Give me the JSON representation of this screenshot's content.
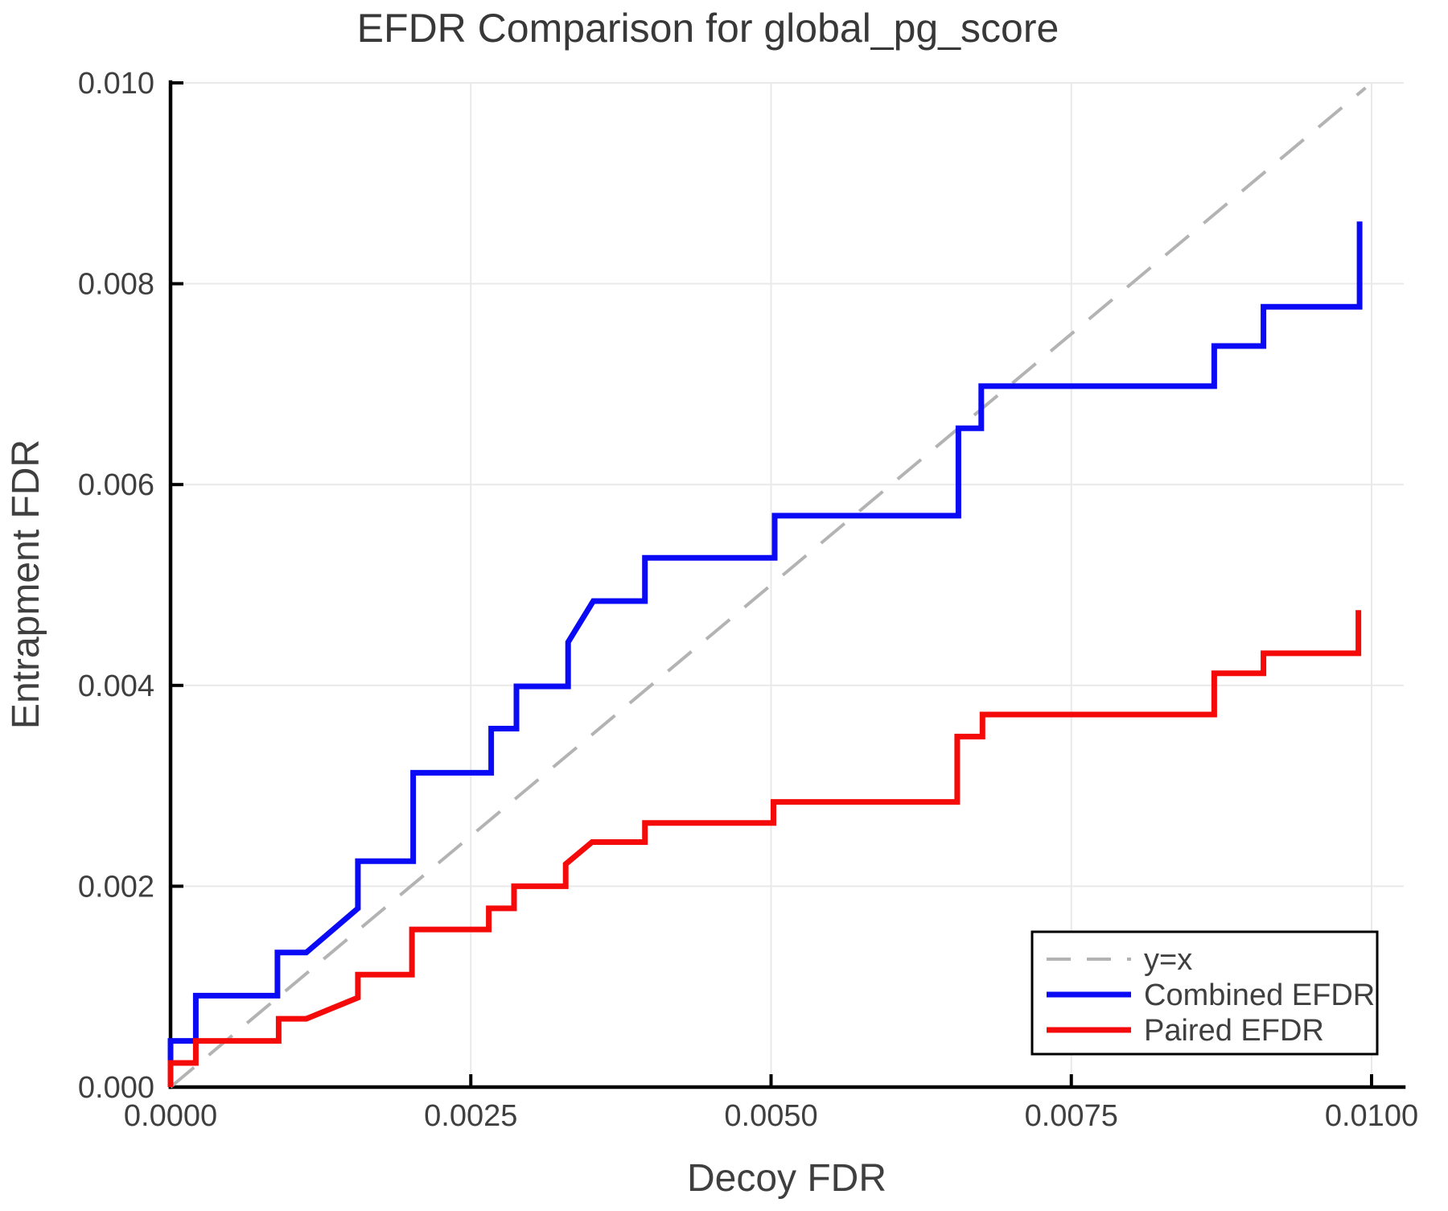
{
  "chart_data": {
    "type": "line",
    "title": "EFDR Comparison for global_pg_score",
    "xlabel": "Decoy FDR",
    "ylabel": "Entrapment FDR",
    "xlim": [
      0,
      0.010268
    ],
    "ylim": [
      0,
      0.010008
    ],
    "grid": true,
    "legend_position": "bottom-right",
    "x_ticks": {
      "values": [
        0.0,
        0.0025,
        0.005,
        0.0075,
        0.01
      ],
      "labels": [
        "0.0000",
        "0.0025",
        "0.0050",
        "0.0075",
        "0.0100"
      ]
    },
    "y_ticks": {
      "values": [
        0.0,
        0.002,
        0.004,
        0.006,
        0.008,
        0.01
      ],
      "labels": [
        "0.000",
        "0.002",
        "0.004",
        "0.006",
        "0.008",
        "0.010"
      ]
    },
    "series": [
      {
        "name": "y=x",
        "color": "#b3b3b3",
        "width": 4,
        "dash": "38 24",
        "points": [
          [
            0,
            0
          ],
          [
            0.00995,
            0.00995
          ]
        ]
      },
      {
        "name": "Combined EFDR",
        "color": "#0a0af5",
        "width": 7,
        "dash": "",
        "points": [
          [
            0.0,
            0.0
          ],
          [
            0.0,
            0.00046
          ],
          [
            0.00021,
            0.00046
          ],
          [
            0.00021,
            0.00091
          ],
          [
            0.00089,
            0.00091
          ],
          [
            0.00089,
            0.00134
          ],
          [
            0.00113,
            0.00134
          ],
          [
            0.00156,
            0.00178
          ],
          [
            0.00156,
            0.00225
          ],
          [
            0.00202,
            0.00225
          ],
          [
            0.00202,
            0.00313
          ],
          [
            0.00267,
            0.00313
          ],
          [
            0.00267,
            0.00357
          ],
          [
            0.00288,
            0.00357
          ],
          [
            0.00288,
            0.00399
          ],
          [
            0.00331,
            0.00399
          ],
          [
            0.00331,
            0.00443
          ],
          [
            0.00352,
            0.00484
          ],
          [
            0.00395,
            0.00484
          ],
          [
            0.00395,
            0.00527
          ],
          [
            0.00503,
            0.00527
          ],
          [
            0.00503,
            0.00569
          ],
          [
            0.00656,
            0.00569
          ],
          [
            0.00656,
            0.00656
          ],
          [
            0.00675,
            0.00656
          ],
          [
            0.00675,
            0.00698
          ],
          [
            0.00869,
            0.00698
          ],
          [
            0.00869,
            0.00738
          ],
          [
            0.0091,
            0.00738
          ],
          [
            0.0091,
            0.00777
          ],
          [
            0.0099,
            0.00777
          ],
          [
            0.0099,
            0.00862
          ]
        ]
      },
      {
        "name": "Paired EFDR",
        "color": "#f50a0a",
        "width": 7,
        "dash": "",
        "points": [
          [
            0.0,
            0.0
          ],
          [
            0.0,
            0.00024
          ],
          [
            0.00021,
            0.00024
          ],
          [
            0.00021,
            0.00046
          ],
          [
            0.0009,
            0.00046
          ],
          [
            0.0009,
            0.00068
          ],
          [
            0.00113,
            0.00068
          ],
          [
            0.00156,
            0.00089
          ],
          [
            0.00156,
            0.00112
          ],
          [
            0.00201,
            0.00112
          ],
          [
            0.00201,
            0.00157
          ],
          [
            0.00265,
            0.00157
          ],
          [
            0.00265,
            0.00178
          ],
          [
            0.00286,
            0.00178
          ],
          [
            0.00286,
            0.002
          ],
          [
            0.00329,
            0.002
          ],
          [
            0.00329,
            0.00222
          ],
          [
            0.00351,
            0.00244
          ],
          [
            0.00395,
            0.00244
          ],
          [
            0.00395,
            0.00263
          ],
          [
            0.00502,
            0.00263
          ],
          [
            0.00502,
            0.00284
          ],
          [
            0.00655,
            0.00284
          ],
          [
            0.00655,
            0.00349
          ],
          [
            0.00676,
            0.00349
          ],
          [
            0.00676,
            0.00371
          ],
          [
            0.00869,
            0.00371
          ],
          [
            0.00869,
            0.00412
          ],
          [
            0.0091,
            0.00412
          ],
          [
            0.0091,
            0.00432
          ],
          [
            0.00989,
            0.00432
          ],
          [
            0.00989,
            0.00475
          ]
        ]
      }
    ]
  }
}
